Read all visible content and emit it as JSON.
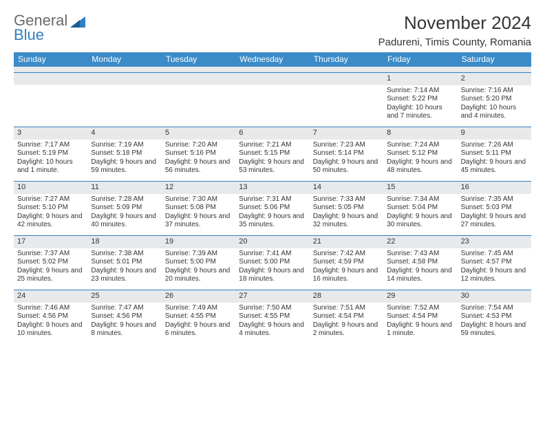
{
  "brand": {
    "line1": "General",
    "line2": "Blue"
  },
  "header": {
    "month_year": "November 2024",
    "location": "Padureni, Timis County, Romania"
  },
  "colors": {
    "header_bar": "#3b8bc9",
    "row_divider": "#2f7fc2",
    "daynum_bg": "#e7e9eb",
    "text": "#333333",
    "brand_gray": "#6a6a6a",
    "brand_blue": "#2f7fc2",
    "background": "#ffffff"
  },
  "dow": [
    "Sunday",
    "Monday",
    "Tuesday",
    "Wednesday",
    "Thursday",
    "Friday",
    "Saturday"
  ],
  "weeks": [
    [
      {
        "n": "",
        "sr": "",
        "ss": "",
        "dl": ""
      },
      {
        "n": "",
        "sr": "",
        "ss": "",
        "dl": ""
      },
      {
        "n": "",
        "sr": "",
        "ss": "",
        "dl": ""
      },
      {
        "n": "",
        "sr": "",
        "ss": "",
        "dl": ""
      },
      {
        "n": "",
        "sr": "",
        "ss": "",
        "dl": ""
      },
      {
        "n": "1",
        "sr": "Sunrise: 7:14 AM",
        "ss": "Sunset: 5:22 PM",
        "dl": "Daylight: 10 hours and 7 minutes."
      },
      {
        "n": "2",
        "sr": "Sunrise: 7:16 AM",
        "ss": "Sunset: 5:20 PM",
        "dl": "Daylight: 10 hours and 4 minutes."
      }
    ],
    [
      {
        "n": "3",
        "sr": "Sunrise: 7:17 AM",
        "ss": "Sunset: 5:19 PM",
        "dl": "Daylight: 10 hours and 1 minute."
      },
      {
        "n": "4",
        "sr": "Sunrise: 7:19 AM",
        "ss": "Sunset: 5:18 PM",
        "dl": "Daylight: 9 hours and 59 minutes."
      },
      {
        "n": "5",
        "sr": "Sunrise: 7:20 AM",
        "ss": "Sunset: 5:16 PM",
        "dl": "Daylight: 9 hours and 56 minutes."
      },
      {
        "n": "6",
        "sr": "Sunrise: 7:21 AM",
        "ss": "Sunset: 5:15 PM",
        "dl": "Daylight: 9 hours and 53 minutes."
      },
      {
        "n": "7",
        "sr": "Sunrise: 7:23 AM",
        "ss": "Sunset: 5:14 PM",
        "dl": "Daylight: 9 hours and 50 minutes."
      },
      {
        "n": "8",
        "sr": "Sunrise: 7:24 AM",
        "ss": "Sunset: 5:12 PM",
        "dl": "Daylight: 9 hours and 48 minutes."
      },
      {
        "n": "9",
        "sr": "Sunrise: 7:26 AM",
        "ss": "Sunset: 5:11 PM",
        "dl": "Daylight: 9 hours and 45 minutes."
      }
    ],
    [
      {
        "n": "10",
        "sr": "Sunrise: 7:27 AM",
        "ss": "Sunset: 5:10 PM",
        "dl": "Daylight: 9 hours and 42 minutes."
      },
      {
        "n": "11",
        "sr": "Sunrise: 7:28 AM",
        "ss": "Sunset: 5:09 PM",
        "dl": "Daylight: 9 hours and 40 minutes."
      },
      {
        "n": "12",
        "sr": "Sunrise: 7:30 AM",
        "ss": "Sunset: 5:08 PM",
        "dl": "Daylight: 9 hours and 37 minutes."
      },
      {
        "n": "13",
        "sr": "Sunrise: 7:31 AM",
        "ss": "Sunset: 5:06 PM",
        "dl": "Daylight: 9 hours and 35 minutes."
      },
      {
        "n": "14",
        "sr": "Sunrise: 7:33 AM",
        "ss": "Sunset: 5:05 PM",
        "dl": "Daylight: 9 hours and 32 minutes."
      },
      {
        "n": "15",
        "sr": "Sunrise: 7:34 AM",
        "ss": "Sunset: 5:04 PM",
        "dl": "Daylight: 9 hours and 30 minutes."
      },
      {
        "n": "16",
        "sr": "Sunrise: 7:35 AM",
        "ss": "Sunset: 5:03 PM",
        "dl": "Daylight: 9 hours and 27 minutes."
      }
    ],
    [
      {
        "n": "17",
        "sr": "Sunrise: 7:37 AM",
        "ss": "Sunset: 5:02 PM",
        "dl": "Daylight: 9 hours and 25 minutes."
      },
      {
        "n": "18",
        "sr": "Sunrise: 7:38 AM",
        "ss": "Sunset: 5:01 PM",
        "dl": "Daylight: 9 hours and 23 minutes."
      },
      {
        "n": "19",
        "sr": "Sunrise: 7:39 AM",
        "ss": "Sunset: 5:00 PM",
        "dl": "Daylight: 9 hours and 20 minutes."
      },
      {
        "n": "20",
        "sr": "Sunrise: 7:41 AM",
        "ss": "Sunset: 5:00 PM",
        "dl": "Daylight: 9 hours and 18 minutes."
      },
      {
        "n": "21",
        "sr": "Sunrise: 7:42 AM",
        "ss": "Sunset: 4:59 PM",
        "dl": "Daylight: 9 hours and 16 minutes."
      },
      {
        "n": "22",
        "sr": "Sunrise: 7:43 AM",
        "ss": "Sunset: 4:58 PM",
        "dl": "Daylight: 9 hours and 14 minutes."
      },
      {
        "n": "23",
        "sr": "Sunrise: 7:45 AM",
        "ss": "Sunset: 4:57 PM",
        "dl": "Daylight: 9 hours and 12 minutes."
      }
    ],
    [
      {
        "n": "24",
        "sr": "Sunrise: 7:46 AM",
        "ss": "Sunset: 4:56 PM",
        "dl": "Daylight: 9 hours and 10 minutes."
      },
      {
        "n": "25",
        "sr": "Sunrise: 7:47 AM",
        "ss": "Sunset: 4:56 PM",
        "dl": "Daylight: 9 hours and 8 minutes."
      },
      {
        "n": "26",
        "sr": "Sunrise: 7:49 AM",
        "ss": "Sunset: 4:55 PM",
        "dl": "Daylight: 9 hours and 6 minutes."
      },
      {
        "n": "27",
        "sr": "Sunrise: 7:50 AM",
        "ss": "Sunset: 4:55 PM",
        "dl": "Daylight: 9 hours and 4 minutes."
      },
      {
        "n": "28",
        "sr": "Sunrise: 7:51 AM",
        "ss": "Sunset: 4:54 PM",
        "dl": "Daylight: 9 hours and 2 minutes."
      },
      {
        "n": "29",
        "sr": "Sunrise: 7:52 AM",
        "ss": "Sunset: 4:54 PM",
        "dl": "Daylight: 9 hours and 1 minute."
      },
      {
        "n": "30",
        "sr": "Sunrise: 7:54 AM",
        "ss": "Sunset: 4:53 PM",
        "dl": "Daylight: 8 hours and 59 minutes."
      }
    ]
  ]
}
